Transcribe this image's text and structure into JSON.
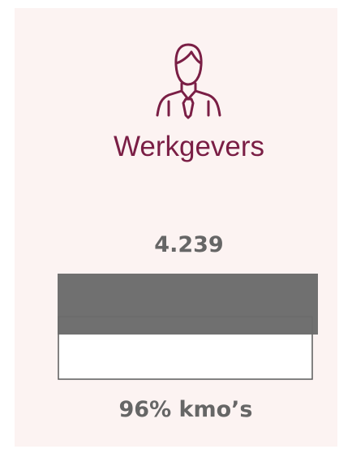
{
  "card": {
    "title": "Werkgevers",
    "value": "4.239",
    "caption": "96% kmo’s"
  }
}
